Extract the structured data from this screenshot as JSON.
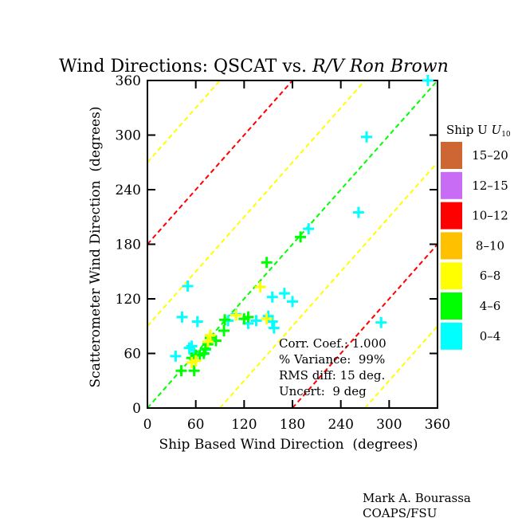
{
  "chart_data": {
    "type": "scatter",
    "title_prefix": "Wind Directions: QSCAT vs. ",
    "title_vessel": "R/V Ron Brown",
    "xlabel": "Ship Based Wind Direction  (degrees)",
    "ylabel": "Scatterometer Wind Direction  (degrees)",
    "xlim": [
      0,
      360
    ],
    "ylim": [
      0,
      360
    ],
    "xticks": [
      "0",
      "60",
      "120",
      "180",
      "240",
      "300",
      "360"
    ],
    "yticks": [
      "0",
      "60",
      "120",
      "180",
      "240",
      "300",
      "360"
    ],
    "grid": false,
    "legend_position": "right",
    "legend_title": "Ship U",
    "legend_title_sub": "10",
    "legend": [
      {
        "label": "15–20",
        "color": "#cd6633"
      },
      {
        "label": "12–15",
        "color": "#c86cf5"
      },
      {
        "label": "10–12",
        "color": "#ff0000"
      },
      {
        "label": "8–10",
        "color": "#ffc000"
      },
      {
        "label": "6–8",
        "color": "#ffff00"
      },
      {
        "label": "4–6",
        "color": "#00ff00"
      },
      {
        "label": "0–4",
        "color": "#00ffff"
      }
    ],
    "reference_lines": [
      {
        "offset": 0,
        "color": "#00ff00"
      },
      {
        "offset": 90,
        "color": "#ffff00"
      },
      {
        "offset": -90,
        "color": "#ffff00"
      },
      {
        "offset": 180,
        "color": "#ff0000"
      },
      {
        "offset": -180,
        "color": "#ff0000"
      },
      {
        "offset": 270,
        "color": "#ffff00"
      },
      {
        "offset": -270,
        "color": "#ffff00"
      }
    ],
    "stats": [
      "Corr. Coef.: 1.000",
      "% Variance:  99%",
      "RMS diff: 15 deg.",
      "Uncert:  9 deg"
    ],
    "series": [
      {
        "range": "0–4",
        "color": "#00ffff",
        "points": [
          [
            35,
            57
          ],
          [
            50,
            134
          ],
          [
            43,
            100
          ],
          [
            55,
            68
          ],
          [
            62,
            95
          ],
          [
            58,
            60
          ],
          [
            52,
            66
          ],
          [
            72,
            64
          ],
          [
            100,
            96
          ],
          [
            110,
            103
          ],
          [
            125,
            93
          ],
          [
            135,
            96
          ],
          [
            150,
            101
          ],
          [
            155,
            95
          ],
          [
            157,
            88
          ],
          [
            155,
            122
          ],
          [
            170,
            126
          ],
          [
            180,
            117
          ],
          [
            200,
            197
          ],
          [
            262,
            215
          ],
          [
            272,
            298
          ],
          [
            290,
            94
          ],
          [
            348,
            360
          ]
        ]
      },
      {
        "range": "4–6",
        "color": "#00ff00",
        "points": [
          [
            42,
            41
          ],
          [
            58,
            41
          ],
          [
            55,
            55
          ],
          [
            60,
            58
          ],
          [
            65,
            58
          ],
          [
            70,
            60
          ],
          [
            72,
            65
          ],
          [
            75,
            70
          ],
          [
            78,
            77
          ],
          [
            85,
            74
          ],
          [
            95,
            85
          ],
          [
            96,
            97
          ],
          [
            120,
            98
          ],
          [
            125,
            100
          ],
          [
            148,
            160
          ],
          [
            190,
            188
          ]
        ]
      },
      {
        "range": "6–8",
        "color": "#ffff00",
        "points": [
          [
            55,
            50
          ],
          [
            60,
            52
          ],
          [
            75,
            73
          ],
          [
            78,
            80
          ],
          [
            110,
            102
          ],
          [
            140,
            133
          ],
          [
            148,
            98
          ]
        ]
      }
    ]
  },
  "credit": {
    "author": "Mark A. Bourassa",
    "org": "COAPS/FSU"
  }
}
